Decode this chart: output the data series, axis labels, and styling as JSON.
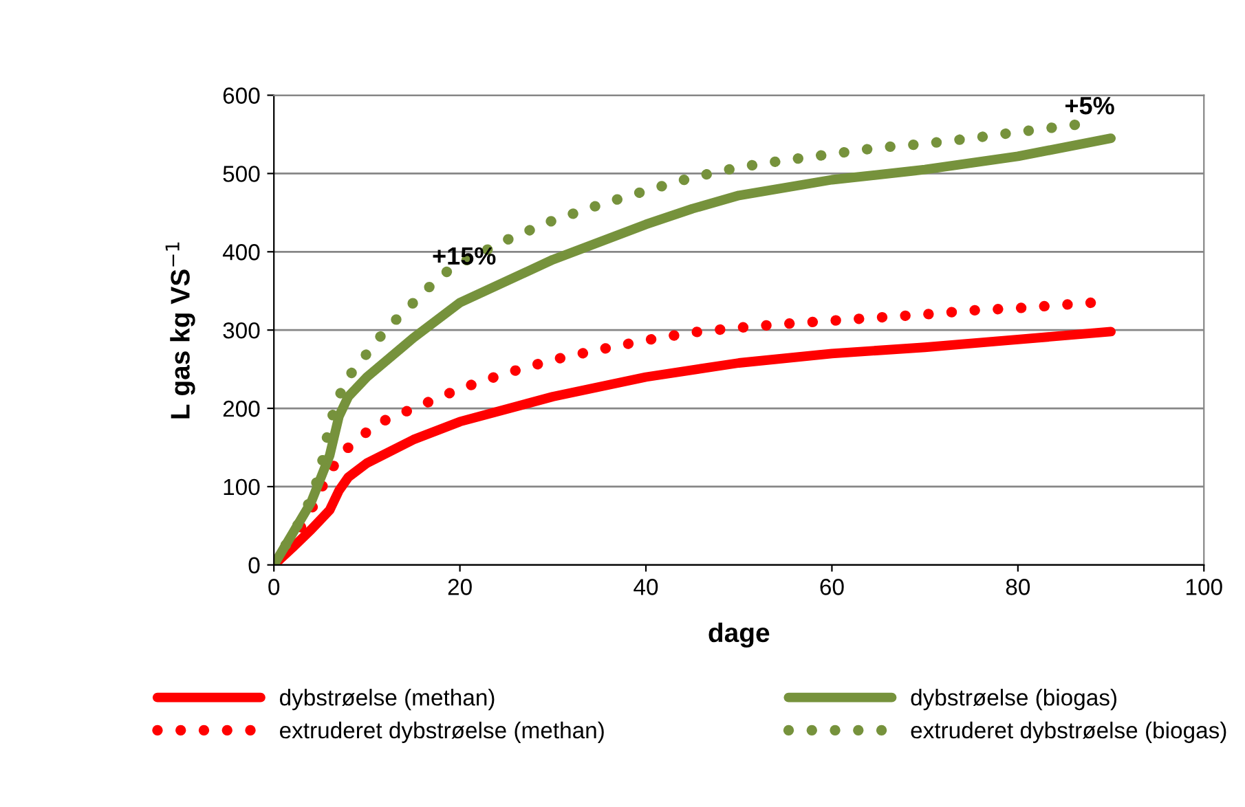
{
  "chart_data": {
    "type": "line",
    "xlabel": "dage",
    "ylabel": "L gas kg VS$^{−1}$",
    "xlim": [
      0,
      100
    ],
    "xticks": [
      0,
      20,
      40,
      60,
      80,
      100
    ],
    "ylim": [
      0,
      600
    ],
    "yticks": [
      0,
      100,
      200,
      300,
      400,
      500,
      600
    ],
    "grid": "y",
    "legend": "bottom",
    "marker": "none",
    "series": [
      {
        "name": "dybstrøelse (methan)",
        "color": "#ff0000",
        "line_style": "solid",
        "x": [
          0,
          2,
          4,
          6,
          7,
          8,
          10,
          15,
          20,
          30,
          40,
          50,
          60,
          70,
          80,
          90
        ],
        "values": [
          0,
          22,
          45,
          70,
          95,
          112,
          130,
          160,
          183,
          215,
          240,
          258,
          270,
          278,
          288,
          298
        ]
      },
      {
        "name": "extruderet dybstrøelse (methan)",
        "color": "#ff0000",
        "line_style": "dotted",
        "x": [
          0,
          1,
          2,
          3,
          4,
          5,
          6,
          8,
          10,
          12,
          15,
          20,
          25,
          30,
          35,
          40,
          45,
          50,
          55,
          60,
          65,
          70,
          75,
          80,
          88
        ],
        "values": [
          0,
          15,
          30,
          50,
          70,
          95,
          120,
          150,
          170,
          185,
          200,
          225,
          245,
          262,
          275,
          287,
          297,
          303,
          308,
          312,
          316,
          320,
          325,
          328,
          335
        ]
      },
      {
        "name": "dybstrøelse (biogas)",
        "color": "#76923c",
        "line_style": "solid",
        "x": [
          0,
          2,
          4,
          6,
          7,
          8,
          10,
          15,
          20,
          30,
          40,
          45,
          50,
          60,
          70,
          80,
          90
        ],
        "values": [
          0,
          40,
          80,
          140,
          190,
          215,
          240,
          290,
          335,
          390,
          435,
          455,
          472,
          492,
          505,
          522,
          545
        ]
      },
      {
        "name": "extruderet dybstrøelse (biogas)",
        "color": "#76923c",
        "line_style": "dotted",
        "x": [
          0,
          1,
          2,
          3,
          4,
          5,
          6,
          7,
          8,
          10,
          12,
          15,
          18,
          20,
          25,
          30,
          35,
          40,
          45,
          50,
          55,
          60,
          65,
          70,
          75,
          80,
          88
        ],
        "values": [
          0,
          20,
          40,
          60,
          85,
          120,
          180,
          215,
          240,
          270,
          300,
          335,
          370,
          385,
          415,
          440,
          460,
          478,
          495,
          508,
          517,
          525,
          533,
          538,
          545,
          553,
          565
        ]
      }
    ],
    "annotations": [
      {
        "text": "+15%",
        "x": 17,
        "y": 370
      },
      {
        "text": "+5%",
        "x": 85,
        "y": 562
      }
    ]
  }
}
